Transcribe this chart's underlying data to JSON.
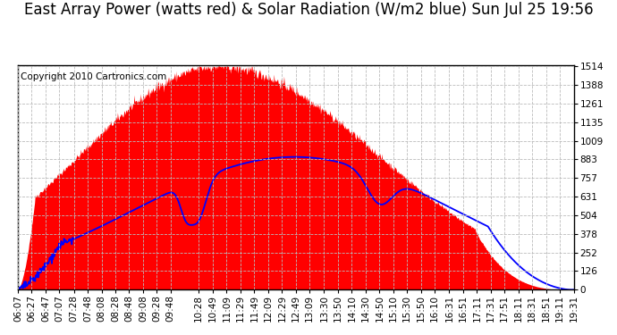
{
  "title": "East Array Power (watts red) & Solar Radiation (W/m2 blue) Sun Jul 25 19:56",
  "copyright_text": "Copyright 2010 Cartronics.com",
  "background_color": "#ffffff",
  "plot_bg_color": "#ffffff",
  "grid_color": "#bbbbbb",
  "grid_style": "--",
  "y_ticks": [
    0.0,
    126.1,
    252.3,
    378.4,
    504.5,
    630.7,
    756.8,
    882.9,
    1009.1,
    1135.2,
    1261.4,
    1387.5,
    1513.6
  ],
  "y_max": 1513.6,
  "y_min": 0.0,
  "red_fill_color": "#ff0000",
  "blue_line_color": "#0000ff",
  "x_labels": [
    "06:07",
    "06:27",
    "06:47",
    "07:07",
    "07:28",
    "07:48",
    "08:08",
    "08:28",
    "08:48",
    "09:08",
    "09:28",
    "09:48",
    "10:28",
    "10:49",
    "11:09",
    "11:29",
    "11:49",
    "12:09",
    "12:29",
    "12:49",
    "13:09",
    "13:30",
    "13:50",
    "14:10",
    "14:30",
    "14:50",
    "15:10",
    "15:30",
    "15:50",
    "16:10",
    "16:31",
    "16:51",
    "17:11",
    "17:31",
    "17:51",
    "18:11",
    "18:31",
    "18:51",
    "19:11",
    "19:31"
  ],
  "title_fontsize": 12,
  "tick_fontsize": 7.5,
  "copyright_fontsize": 7.5
}
